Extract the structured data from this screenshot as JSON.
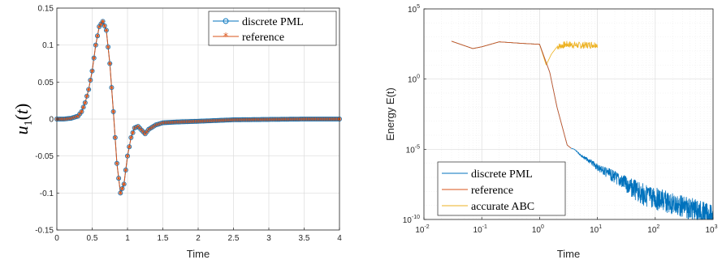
{
  "chart_data": [
    {
      "type": "line",
      "xlabel": "Time",
      "ylabel": "u₁(t)",
      "xlim": [
        0,
        4
      ],
      "ylim": [
        -0.15,
        0.15
      ],
      "xticks": [
        "0",
        "0.5",
        "1",
        "1.5",
        "2",
        "2.5",
        "3",
        "3.5",
        "4"
      ],
      "yticks": [
        "-0.15",
        "-0.1",
        "-0.05",
        "0",
        "0.05",
        "0.1",
        "0.15"
      ],
      "grid": true,
      "legend_position": "top-right",
      "series": [
        {
          "name": "discrete PML",
          "color": "#0072BD",
          "marker": "circle",
          "x": [
            0,
            0.1,
            0.2,
            0.3,
            0.35,
            0.4,
            0.45,
            0.5,
            0.55,
            0.6,
            0.65,
            0.7,
            0.75,
            0.8,
            0.85,
            0.9,
            0.95,
            1.0,
            1.05,
            1.1,
            1.15,
            1.2,
            1.25,
            1.3,
            1.4,
            1.5,
            1.7,
            2.0,
            2.5,
            3.0,
            3.5,
            4.0
          ],
          "y": [
            0,
            0,
            0.001,
            0.004,
            0.01,
            0.022,
            0.04,
            0.065,
            0.1,
            0.125,
            0.132,
            0.12,
            0.075,
            0.01,
            -0.06,
            -0.1,
            -0.088,
            -0.05,
            -0.025,
            -0.012,
            -0.01,
            -0.015,
            -0.02,
            -0.014,
            -0.008,
            -0.005,
            -0.004,
            -0.003,
            -0.001,
            -0.0005,
            0,
            0
          ]
        },
        {
          "name": "reference",
          "color": "#D95319",
          "marker": "asterisk",
          "x": [
            0,
            0.1,
            0.2,
            0.3,
            0.35,
            0.4,
            0.45,
            0.5,
            0.55,
            0.6,
            0.65,
            0.7,
            0.75,
            0.8,
            0.85,
            0.9,
            0.95,
            1.0,
            1.05,
            1.1,
            1.15,
            1.2,
            1.25,
            1.3,
            1.4,
            1.5,
            1.7,
            2.0,
            2.5,
            3.0,
            3.5,
            4.0
          ],
          "y": [
            0,
            0,
            0.001,
            0.004,
            0.01,
            0.022,
            0.04,
            0.065,
            0.1,
            0.125,
            0.132,
            0.12,
            0.075,
            0.01,
            -0.06,
            -0.1,
            -0.088,
            -0.05,
            -0.025,
            -0.012,
            -0.01,
            -0.015,
            -0.02,
            -0.014,
            -0.008,
            -0.005,
            -0.004,
            -0.003,
            -0.001,
            -0.0005,
            0,
            0
          ]
        }
      ]
    },
    {
      "type": "line",
      "xlabel": "Time",
      "ylabel": "Energy E(t)",
      "xscale": "log",
      "yscale": "log",
      "xlim": [
        0.01,
        1000
      ],
      "ylim": [
        1e-10,
        100000
      ],
      "grid": true,
      "legend_position": "bottom-left",
      "series": [
        {
          "name": "discrete PML",
          "color": "#0072BD",
          "x": [
            0.03,
            0.07,
            0.1,
            0.2,
            0.5,
            1,
            1.5,
            2,
            3,
            3.5,
            4,
            5,
            10,
            20,
            50,
            100,
            200,
            500,
            1000
          ],
          "y": [
            500,
            150,
            200,
            450,
            350,
            300,
            3,
            0.01,
            2e-05,
            1.2e-05,
            1e-05,
            5e-06,
            1e-06,
            3e-07,
            5e-08,
            2e-08,
            8e-09,
            3e-09,
            1e-09
          ]
        },
        {
          "name": "reference",
          "color": "#D95319",
          "x": [
            0.03,
            0.07,
            0.1,
            0.2,
            0.5,
            1,
            1.5,
            2,
            3,
            3.5
          ],
          "y": [
            500,
            150,
            200,
            450,
            350,
            300,
            3,
            0.01,
            2e-05,
            1.2e-05
          ]
        },
        {
          "name": "accurate ABC",
          "color": "#EDB120",
          "x": [
            0.03,
            0.07,
            0.1,
            0.2,
            0.5,
            1,
            1.3,
            1.6,
            2,
            3,
            5,
            10
          ],
          "y": [
            500,
            150,
            200,
            450,
            350,
            300,
            10,
            60,
            200,
            300,
            250,
            300
          ]
        }
      ]
    }
  ],
  "left_chart": {
    "legend": [
      "discrete PML",
      "reference"
    ],
    "xlabel": "Time"
  },
  "right_chart": {
    "legend": [
      "discrete PML",
      "reference",
      "accurate ABC"
    ],
    "xlabel": "Time",
    "ylabel": "Energy E(t)",
    "xticks": [
      {
        "base": "10",
        "exp": "-2"
      },
      {
        "base": "10",
        "exp": "-1"
      },
      {
        "base": "10",
        "exp": "0"
      },
      {
        "base": "10",
        "exp": "1"
      },
      {
        "base": "10",
        "exp": "2"
      },
      {
        "base": "10",
        "exp": "3"
      }
    ],
    "yticks": [
      {
        "base": "10",
        "exp": "5"
      },
      {
        "base": "10",
        "exp": "0"
      },
      {
        "base": "10",
        "exp": "-5"
      },
      {
        "base": "10",
        "exp": "-10"
      }
    ]
  }
}
